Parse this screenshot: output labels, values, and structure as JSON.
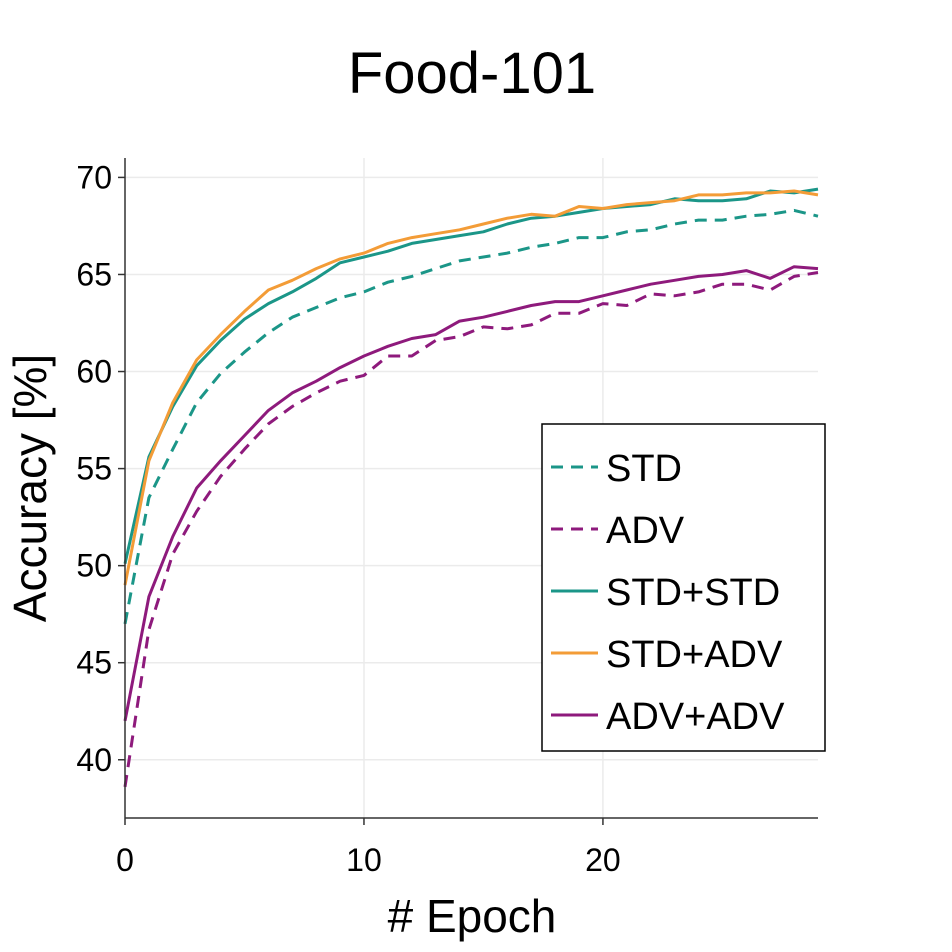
{
  "chart_data": {
    "type": "line",
    "title": "Food-101",
    "xlabel": "# Epoch",
    "ylabel": "Accuracy [%]",
    "xlim": [
      0,
      29
    ],
    "ylim": [
      37,
      71
    ],
    "xticks": [
      0,
      10,
      20
    ],
    "yticks": [
      40,
      45,
      50,
      55,
      60,
      65,
      70
    ],
    "grid": true,
    "legend_position": "lower-right",
    "x": [
      0,
      1,
      2,
      3,
      4,
      5,
      6,
      7,
      8,
      9,
      10,
      11,
      12,
      13,
      14,
      15,
      16,
      17,
      18,
      19,
      20,
      21,
      22,
      23,
      24,
      25,
      26,
      27,
      28,
      29
    ],
    "series": [
      {
        "name": "STD",
        "color": "#1b9688",
        "dash": true,
        "values": [
          47.0,
          53.5,
          56.0,
          58.4,
          59.9,
          61.0,
          62.0,
          62.8,
          63.3,
          63.8,
          64.1,
          64.6,
          64.9,
          65.3,
          65.7,
          65.9,
          66.1,
          66.4,
          66.6,
          66.9,
          66.9,
          67.2,
          67.3,
          67.6,
          67.8,
          67.8,
          68.0,
          68.1,
          68.3,
          68.0
        ]
      },
      {
        "name": "ADV",
        "color": "#8e1a7c",
        "dash": true,
        "values": [
          38.6,
          46.7,
          50.6,
          52.8,
          54.6,
          56.0,
          57.3,
          58.2,
          58.9,
          59.5,
          59.8,
          60.8,
          60.8,
          61.6,
          61.8,
          62.3,
          62.2,
          62.4,
          63.0,
          63.0,
          63.5,
          63.4,
          64.0,
          63.9,
          64.1,
          64.5,
          64.5,
          64.2,
          64.9,
          65.1
        ]
      },
      {
        "name": "STD+STD",
        "color": "#1b9688",
        "dash": false,
        "values": [
          50.1,
          55.6,
          58.2,
          60.3,
          61.6,
          62.7,
          63.5,
          64.1,
          64.8,
          65.6,
          65.9,
          66.2,
          66.6,
          66.8,
          67.0,
          67.2,
          67.6,
          67.9,
          68.0,
          68.2,
          68.4,
          68.5,
          68.6,
          68.9,
          68.8,
          68.8,
          68.9,
          69.3,
          69.2,
          69.4
        ]
      },
      {
        "name": "STD+ADV",
        "color": "#f39c37",
        "dash": false,
        "values": [
          49.0,
          55.4,
          58.4,
          60.6,
          61.9,
          63.1,
          64.2,
          64.7,
          65.3,
          65.8,
          66.1,
          66.6,
          66.9,
          67.1,
          67.3,
          67.6,
          67.9,
          68.1,
          68.0,
          68.5,
          68.4,
          68.6,
          68.7,
          68.8,
          69.1,
          69.1,
          69.2,
          69.2,
          69.3,
          69.1
        ]
      },
      {
        "name": "ADV+ADV",
        "color": "#8e1a7c",
        "dash": false,
        "values": [
          42.0,
          48.4,
          51.5,
          54.0,
          55.4,
          56.7,
          58.0,
          58.9,
          59.5,
          60.2,
          60.8,
          61.3,
          61.7,
          61.9,
          62.6,
          62.8,
          63.1,
          63.4,
          63.6,
          63.6,
          63.9,
          64.2,
          64.5,
          64.7,
          64.9,
          65.0,
          65.2,
          64.8,
          65.4,
          65.3
        ]
      }
    ]
  }
}
